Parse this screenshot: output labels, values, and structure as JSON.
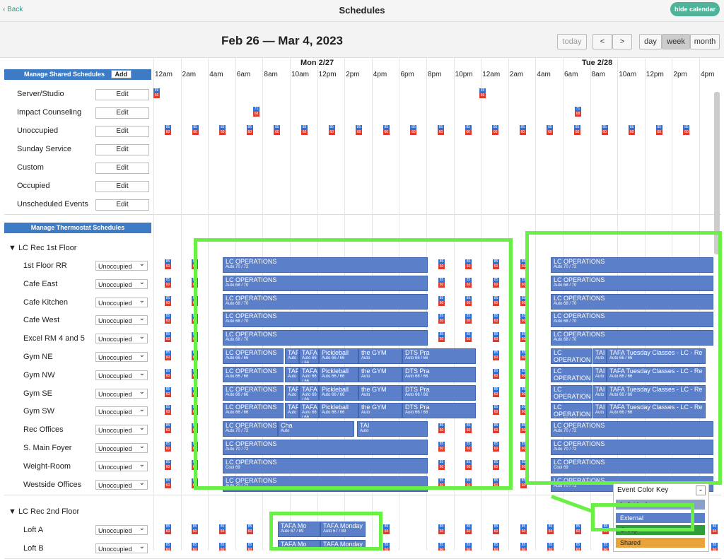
{
  "header": {
    "back": "Back",
    "title": "Schedules",
    "hide_calendar": "hide calendar"
  },
  "calendar": {
    "range": "Feb 26 — Mar 4, 2023",
    "today": "today",
    "prev": "<",
    "next": ">",
    "view_day": "day",
    "view_week": "week",
    "view_month": "month",
    "day1": "Mon 2/27",
    "day2": "Tue 2/28",
    "times": [
      "12am",
      "2am",
      "4am",
      "6am",
      "8am",
      "10am",
      "12pm",
      "2pm",
      "4pm",
      "6pm",
      "8pm",
      "10pm",
      "12am",
      "2am",
      "4am",
      "6am",
      "8am",
      "10am",
      "12pm",
      "2pm",
      "4pm"
    ]
  },
  "shared": {
    "manage_label": "Manage Shared Schedules",
    "add": "Add",
    "edit": "Edit",
    "items": [
      "Server/Studio",
      "Impact Counseling",
      "Unoccupied",
      "Sunday Service",
      "Custom",
      "Occupied",
      "Unscheduled Events"
    ]
  },
  "thermostat": {
    "manage_label": "Manage Thermostat Schedules",
    "group1": "▼ LC Rec 1st Floor",
    "group2": "▼ LC Rec 2nd Floor",
    "select_value": "Unoccupied",
    "rooms1": [
      "1st Floor RR",
      "Cafe East",
      "Cafe Kitchen",
      "Cafe West",
      "Excel RM 4 and 5",
      "Gym NE",
      "Gym NW",
      "Gym SE",
      "Gym SW",
      "Rec Offices",
      "S. Main Foyer",
      "Weight-Room",
      "Westside Offices"
    ],
    "rooms2": [
      "Loft A",
      "Loft B"
    ]
  },
  "events": {
    "lc_ops": "LC OPERATIONS",
    "auto7072": "Auto 70 / 72",
    "auto6870": "Auto 68 / 70",
    "auto6666": "Auto 66 / 66",
    "cool69": "Cool 69",
    "tafa": "TAFA",
    "pickleball": "Pickleball",
    "gym": "the GYM",
    "dts": "DTS Pra",
    "tafa_tue": "TAFA Tuesday Classes - LC - Re",
    "tafa_mon": "TAFA Monday",
    "tafa_mon_short": "TAFA Mo",
    "cha": "Cha",
    "ta": "TAI",
    "auto6789": "Auto 67 / 89",
    "auto": "Auto"
  },
  "markers": {
    "a": "85",
    "b": "60",
    "c": "69",
    "d": "66",
    "e": "71",
    "f": "68",
    "g": "62",
    "off": "OFF"
  },
  "legend": {
    "title": "Event Color Key",
    "items": [
      "Individual",
      "External",
      "Group",
      "Shared"
    ],
    "colors": [
      "#8aa0c8",
      "#5b7fc9",
      "#2e9d3a",
      "#e9a33b"
    ]
  }
}
